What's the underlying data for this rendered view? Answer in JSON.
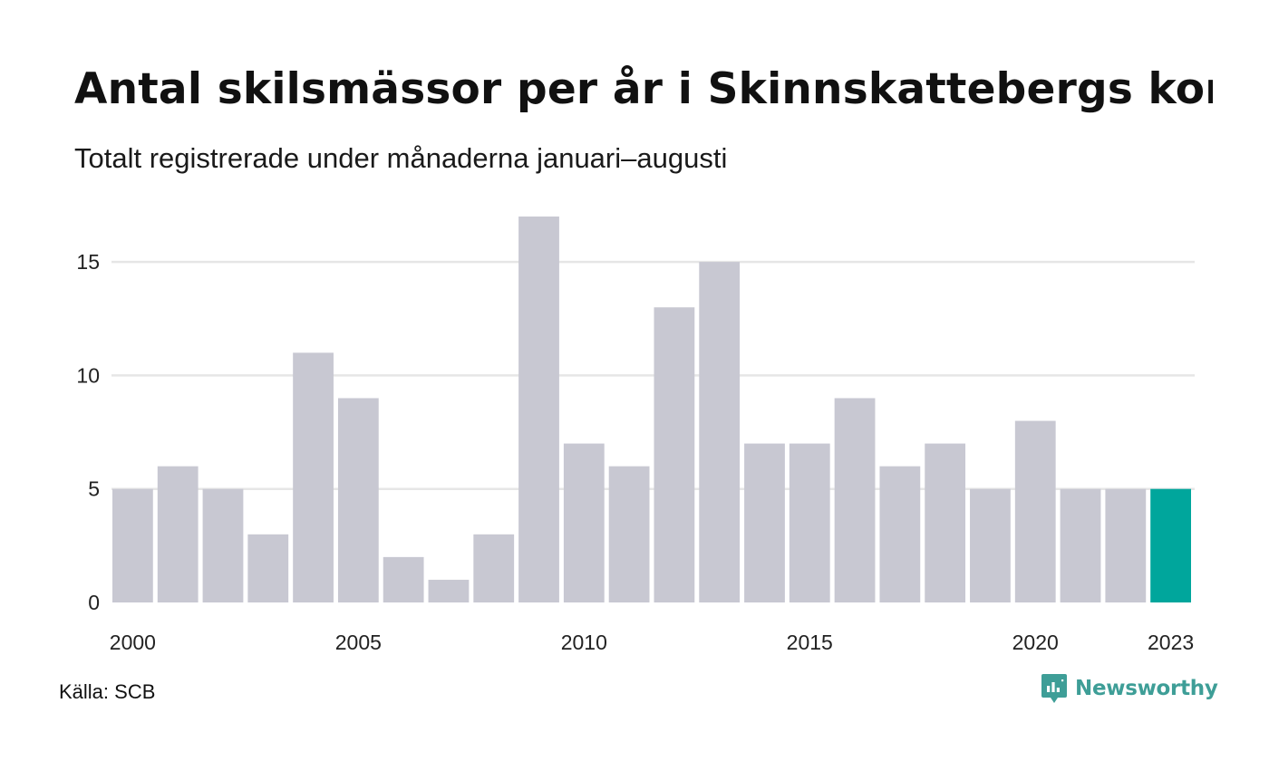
{
  "header": {
    "title": "Antal skilsmässor per år i Skinnskattebergs kommun",
    "subtitle": "Totalt registrerade under månaderna januari–augusti"
  },
  "footer": {
    "source": "Källa: SCB",
    "brand": "Newsworthy",
    "brand_icon": "newsworthy-logo-icon"
  },
  "chart_data": {
    "type": "bar",
    "title": "Antal skilsmässor per år i Skinnskattebergs kommun",
    "subtitle": "Totalt registrerade under månaderna januari–augusti",
    "xlabel": "",
    "ylabel": "",
    "categories": [
      "2000",
      "2001",
      "2002",
      "2003",
      "2004",
      "2005",
      "2006",
      "2007",
      "2008",
      "2009",
      "2010",
      "2011",
      "2012",
      "2013",
      "2014",
      "2015",
      "2016",
      "2017",
      "2018",
      "2019",
      "2020",
      "2021",
      "2022",
      "2023"
    ],
    "values": [
      5,
      6,
      5,
      3,
      11,
      9,
      2,
      1,
      3,
      17,
      7,
      6,
      13,
      15,
      7,
      7,
      9,
      6,
      7,
      5,
      8,
      5,
      5,
      5
    ],
    "x_tick_labels": [
      "2000",
      "2005",
      "2010",
      "2015",
      "2020",
      "2023"
    ],
    "y_ticks": [
      0,
      5,
      10,
      15
    ],
    "ylim": [
      0,
      17
    ],
    "grid": true,
    "legend": "none",
    "colors": {
      "bar": "#c8c8d2",
      "highlight": "#00a69c",
      "grid": "#e6e6e6",
      "brand": "#3e9e97"
    }
  }
}
